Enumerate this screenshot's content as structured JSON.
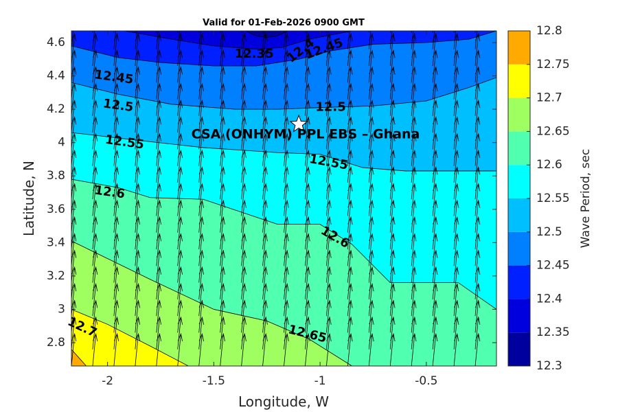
{
  "chart_data": {
    "type": "contour",
    "title": "Valid for 01-Feb-2026 0900 GMT",
    "xlabel": "Longitude, W",
    "ylabel": "Latitude, N",
    "colorbar_label": "Wave Period, sec",
    "xlim": [
      -2.17,
      -0.17
    ],
    "ylim": [
      2.66,
      4.67
    ],
    "xticks": [
      -2,
      -1.5,
      -1,
      -0.5
    ],
    "yticks": [
      2.8,
      3.0,
      3.2,
      3.4,
      3.6,
      3.8,
      4.0,
      4.2,
      4.4,
      4.6
    ],
    "xtick_labels": [
      "-2",
      "-1.5",
      "-1",
      "-0.5"
    ],
    "ytick_labels": [
      "2.8",
      "3",
      "3.2",
      "3.4",
      "3.6",
      "3.8",
      "4",
      "4.2",
      "4.4",
      "4.6"
    ],
    "levels": [
      12.3,
      12.35,
      12.4,
      12.45,
      12.5,
      12.55,
      12.6,
      12.65,
      12.7,
      12.75,
      12.8
    ],
    "level_labels": [
      "12.3",
      "12.35",
      "12.4",
      "12.45",
      "12.5",
      "12.55",
      "12.6",
      "12.65",
      "12.7",
      "12.75",
      "12.8"
    ],
    "level_colors": [
      "#00009f",
      "#0000df",
      "#0020ff",
      "#0080ff",
      "#00bfff",
      "#00ffff",
      "#50ffb0",
      "#a0ff60",
      "#ffff00",
      "#ffaa00",
      "#ff5500"
    ],
    "contours": [
      {
        "level": 12.75,
        "x": [
          -2.17,
          -2.1
        ],
        "y": [
          2.76,
          2.66
        ]
      },
      {
        "level": 12.7,
        "x": [
          -2.17,
          -2.0,
          -1.8,
          -1.62
        ],
        "y": [
          3.0,
          2.91,
          2.78,
          2.66
        ]
      },
      {
        "level": 12.65,
        "x": [
          -2.17,
          -1.8,
          -1.5,
          -1.25,
          -1.05,
          -0.85
        ],
        "y": [
          3.41,
          3.18,
          3.0,
          2.93,
          2.82,
          2.66
        ]
      },
      {
        "level": 12.6,
        "x": [
          -2.17,
          -1.95,
          -1.8,
          -1.55,
          -1.2,
          -1.0,
          -0.85,
          -0.67,
          -0.35,
          -0.17
        ],
        "y": [
          3.78,
          3.73,
          3.67,
          3.66,
          3.51,
          3.51,
          3.39,
          3.16,
          3.16,
          3.0
        ]
      },
      {
        "level": 12.55,
        "x": [
          -2.17,
          -1.9,
          -1.55,
          -1.2,
          -1.0,
          -0.8,
          -0.6,
          -0.35,
          -0.17
        ],
        "y": [
          4.06,
          4.02,
          3.97,
          3.94,
          3.93,
          3.85,
          3.83,
          3.83,
          3.83
        ]
      },
      {
        "level": 12.5,
        "x": [
          -2.17,
          -1.95,
          -1.7,
          -1.4,
          -1.2,
          -1.0,
          -0.75,
          -0.5,
          -0.3,
          -0.17
        ],
        "y": [
          4.36,
          4.29,
          4.23,
          4.2,
          4.2,
          4.21,
          4.22,
          4.25,
          4.33,
          4.39
        ]
      },
      {
        "level": 12.45,
        "x": [
          -2.17,
          -1.95,
          -1.75,
          -1.5,
          -1.3,
          -1.1,
          -0.95,
          -0.75,
          -0.5,
          -0.3,
          -0.17
        ],
        "y": [
          4.58,
          4.51,
          4.48,
          4.46,
          4.46,
          4.5,
          4.55,
          4.59,
          4.6,
          4.62,
          4.67
        ]
      },
      {
        "level": 12.4,
        "x": [
          -1.92,
          -1.7,
          -1.5,
          -1.3,
          -1.18,
          -1.05,
          -0.85
        ],
        "y": [
          4.67,
          4.62,
          4.58,
          4.56,
          4.57,
          4.62,
          4.67
        ]
      },
      {
        "level": 12.35,
        "x": [
          -1.35,
          -1.3,
          -1.25,
          -1.2,
          -1.15
        ],
        "y": [
          4.67,
          4.64,
          4.63,
          4.64,
          4.67
        ]
      }
    ],
    "contour_labels": [
      {
        "text": "12.35",
        "x": -1.31,
        "y": 4.53,
        "angle": 0
      },
      {
        "text": "12.4",
        "x": -1.09,
        "y": 4.55,
        "angle": -38
      },
      {
        "text": "12.45",
        "x": -0.98,
        "y": 4.56,
        "angle": -20
      },
      {
        "text": "12.45",
        "x": -1.97,
        "y": 4.39,
        "angle": 8
      },
      {
        "text": "12.5",
        "x": -1.95,
        "y": 4.22,
        "angle": 8
      },
      {
        "text": "12.5",
        "x": -0.95,
        "y": 4.21,
        "angle": 0
      },
      {
        "text": "12.55",
        "x": -1.92,
        "y": 4.0,
        "angle": 8
      },
      {
        "text": "12.55",
        "x": -0.96,
        "y": 3.88,
        "angle": 10
      },
      {
        "text": "12.6",
        "x": -1.99,
        "y": 3.7,
        "angle": 8
      },
      {
        "text": "12.6",
        "x": -0.93,
        "y": 3.43,
        "angle": 30
      },
      {
        "text": "12.65",
        "x": -1.06,
        "y": 2.85,
        "angle": 14
      },
      {
        "text": "12.7",
        "x": -2.12,
        "y": 2.89,
        "angle": 25
      }
    ],
    "site": {
      "name": "CSA (ONHYM) PPL EBS  – Ghana",
      "lon": -1.1,
      "lat": 4.11
    },
    "vectors": {
      "x_start": -2.17,
      "x_step": 0.1,
      "y_start": 2.66,
      "y_step": 0.1,
      "u": 0.1,
      "v": 1.0
    }
  },
  "colors": {
    "contour_line": "#000000",
    "axis": "#262626",
    "star_fill": "#ffffff"
  }
}
